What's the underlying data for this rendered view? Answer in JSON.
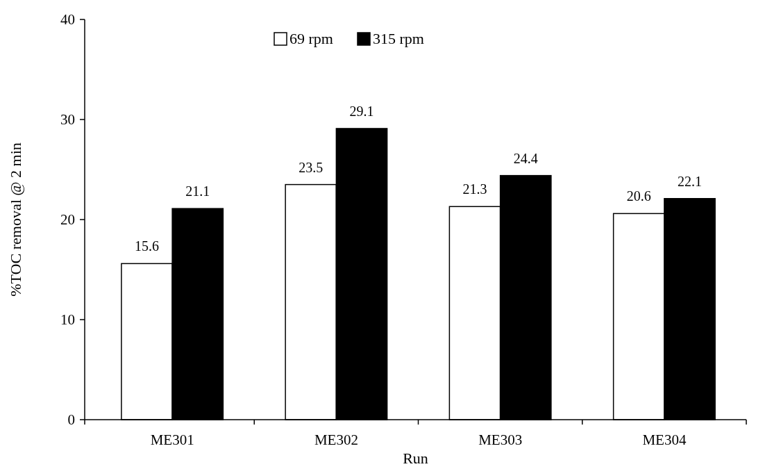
{
  "chart_data": {
    "type": "bar",
    "xlabel": "Run",
    "ylabel": "%TOC removal @ 2 min",
    "categories": [
      "ME301",
      "ME302",
      "ME303",
      "ME304"
    ],
    "series": [
      {
        "name": "69 rpm",
        "color": "#ffffff",
        "values": [
          15.6,
          23.5,
          21.3,
          20.6
        ]
      },
      {
        "name": "315 rpm",
        "color": "#000000",
        "values": [
          21.1,
          29.1,
          24.4,
          22.1
        ]
      }
    ],
    "ylim": [
      0,
      40
    ],
    "yticks": [
      0,
      10,
      20,
      30,
      40
    ],
    "grid": false,
    "legend": "top",
    "data_labels": true
  }
}
